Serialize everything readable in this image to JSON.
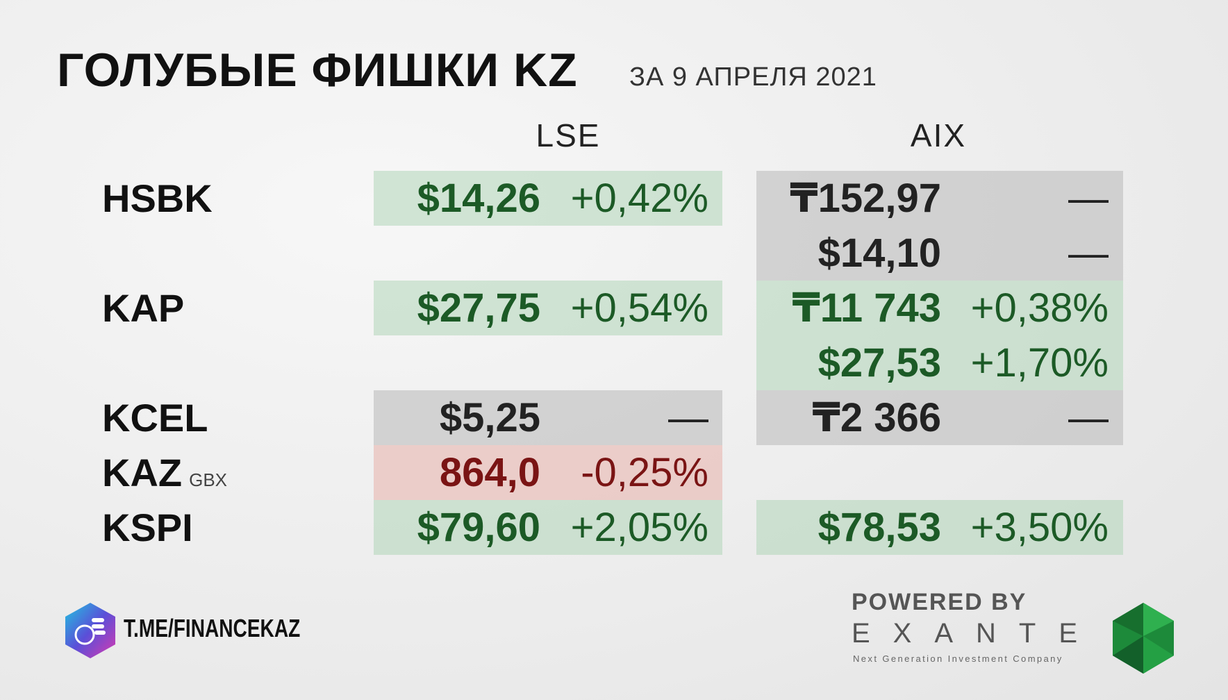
{
  "header": {
    "title": "ГОЛУБЫЕ ФИШКИ KZ",
    "subtitle": "ЗА 9 АПРЕЛЯ 2021"
  },
  "columns": [
    "LSE",
    "AIX"
  ],
  "rows": [
    {
      "ticker": "HSBK",
      "lse": [
        {
          "price": "$14,26",
          "change": "+0,42%",
          "tone": "green"
        }
      ],
      "aix": [
        {
          "price": "₸152,97",
          "change": "—",
          "tone": "grey"
        },
        {
          "price": "$14,10",
          "change": "—",
          "tone": "grey"
        }
      ]
    },
    {
      "ticker": "KAP",
      "lse": [
        {
          "price": "$27,75",
          "change": "+0,54%",
          "tone": "green"
        }
      ],
      "aix": [
        {
          "price": "₸11 743",
          "change": "+0,38%",
          "tone": "green"
        },
        {
          "price": "$27,53",
          "change": "+1,70%",
          "tone": "green"
        }
      ]
    },
    {
      "ticker": "KCEL",
      "lse": [
        {
          "price": "$5,25",
          "change": "—",
          "tone": "grey"
        }
      ],
      "aix": [
        {
          "price": "₸2 366",
          "change": "—",
          "tone": "grey"
        }
      ]
    },
    {
      "ticker": "KAZ",
      "note": "GBX",
      "lse": [
        {
          "price": "864,0",
          "change": "-0,25%",
          "tone": "red"
        }
      ],
      "aix": []
    },
    {
      "ticker": "KSPI",
      "lse": [
        {
          "price": "$79,60",
          "change": "+2,05%",
          "tone": "green"
        }
      ],
      "aix": [
        {
          "price": "$78,53",
          "change": "+3,50%",
          "tone": "green"
        }
      ]
    }
  ],
  "footer": {
    "channel": "T.ME/FINANCEKAZ",
    "powered": "POWERED BY",
    "brand": "EXANTE",
    "tagline": "Next Generation Investment Company"
  }
}
